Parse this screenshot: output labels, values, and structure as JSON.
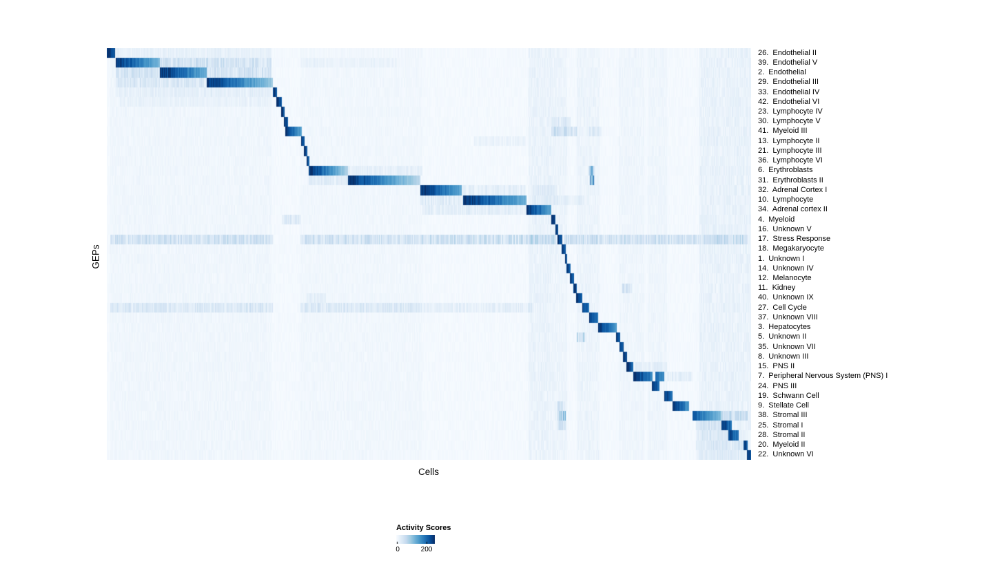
{
  "chart_data": {
    "type": "heatmap",
    "title": "",
    "xlabel": "Cells",
    "ylabel": "GEPs",
    "colorbar": {
      "title": "Activity Scores",
      "tick_labels": [
        "0",
        "200"
      ]
    },
    "colormap": [
      "#f7fbff",
      "#deebf7",
      "#c6dbef",
      "#9ecae1",
      "#6baed6",
      "#4292c6",
      "#2171b5",
      "#08519c",
      "#08306b"
    ],
    "layout_hints": {
      "rows_are_geps": true,
      "columns_are_cells": true,
      "diagonal_block_structure": true,
      "row_labels_position": "right",
      "legend_position": "bottom"
    },
    "rows": [
      {
        "label": "26.  Endothelial II",
        "blocks": [
          [
            0.0,
            0.012,
            1.0,
            0.9
          ]
        ],
        "haze": [
          [
            0.012,
            0.255,
            0.04
          ]
        ]
      },
      {
        "label": "39.  Endothelial V",
        "blocks": [
          [
            0.013,
            0.082,
            1.0,
            0.45
          ]
        ],
        "haze": [
          [
            0.082,
            0.255,
            0.13
          ],
          [
            0.3,
            0.45,
            0.03
          ]
        ]
      },
      {
        "label": "2.  Endothelial",
        "blocks": [
          [
            0.082,
            0.155,
            1.0,
            0.5
          ]
        ],
        "haze": [
          [
            0.013,
            0.082,
            0.12
          ],
          [
            0.155,
            0.255,
            0.12
          ]
        ]
      },
      {
        "label": "29.  Endothelial III",
        "blocks": [
          [
            0.155,
            0.257,
            1.0,
            0.38
          ]
        ],
        "haze": [
          [
            0.013,
            0.155,
            0.1
          ]
        ]
      },
      {
        "label": "33.  Endothelial IV",
        "blocks": [
          [
            0.257,
            0.264,
            1.0,
            0.88
          ]
        ],
        "haze": [
          [
            0.013,
            0.255,
            0.05
          ]
        ]
      },
      {
        "label": "42.  Endothelial VI",
        "blocks": [
          [
            0.263,
            0.271,
            1.0,
            0.85
          ]
        ],
        "haze": [
          [
            0.02,
            0.255,
            0.03
          ]
        ]
      },
      {
        "label": "23.  Lymphocyte IV",
        "blocks": [
          [
            0.27,
            0.276,
            1.0,
            0.85
          ]
        ],
        "haze": []
      },
      {
        "label": "30.  Lymphocyte V",
        "blocks": [
          [
            0.275,
            0.281,
            1.0,
            0.85
          ]
        ],
        "haze": [
          [
            0.69,
            0.72,
            0.07
          ]
        ]
      },
      {
        "label": "41.  Myeloid III",
        "blocks": [
          [
            0.277,
            0.302,
            1.0,
            0.55
          ]
        ],
        "haze": [
          [
            0.69,
            0.73,
            0.14
          ],
          [
            0.748,
            0.768,
            0.07
          ]
        ]
      },
      {
        "label": "13.  Lymphocyte II",
        "blocks": [
          [
            0.301,
            0.307,
            1.0,
            0.85
          ]
        ],
        "haze": [
          [
            0.57,
            0.65,
            0.04
          ]
        ]
      },
      {
        "label": "21.  Lymphocyte III",
        "blocks": [
          [
            0.306,
            0.311,
            1.0,
            0.85
          ]
        ],
        "haze": []
      },
      {
        "label": "36.  Lymphocyte VI",
        "blocks": [
          [
            0.31,
            0.314,
            1.0,
            0.85
          ]
        ],
        "haze": []
      },
      {
        "label": "6.  Erythroblasts",
        "blocks": [
          [
            0.313,
            0.374,
            1.0,
            0.32
          ]
        ],
        "haze": [
          [
            0.374,
            0.49,
            0.05
          ],
          [
            0.748,
            0.757,
            0.28
          ]
        ]
      },
      {
        "label": "31.  Erythroblasts II",
        "blocks": [
          [
            0.374,
            0.487,
            1.0,
            0.28
          ]
        ],
        "haze": [
          [
            0.313,
            0.374,
            0.07
          ],
          [
            0.75,
            0.757,
            0.45
          ]
        ]
      },
      {
        "label": "32.  Adrenal Cortex I",
        "blocks": [
          [
            0.487,
            0.551,
            1.0,
            0.52
          ]
        ],
        "haze": [
          [
            0.551,
            0.65,
            0.07
          ],
          [
            0.66,
            0.7,
            0.05
          ]
        ]
      },
      {
        "label": "10.  Lymphocyte",
        "blocks": [
          [
            0.553,
            0.652,
            1.0,
            0.5
          ]
        ],
        "haze": [
          [
            0.487,
            0.553,
            0.09
          ],
          [
            0.66,
            0.74,
            0.05
          ]
        ]
      },
      {
        "label": "34.  Adrenal cortex II",
        "blocks": [
          [
            0.652,
            0.69,
            1.0,
            0.55
          ]
        ],
        "haze": [
          [
            0.49,
            0.652,
            0.07
          ]
        ]
      },
      {
        "label": "4.  Myeloid",
        "blocks": [
          [
            0.69,
            0.697,
            1.0,
            0.85
          ]
        ],
        "haze": [
          [
            0.273,
            0.3,
            0.11
          ]
        ]
      },
      {
        "label": "16.  Unknown V",
        "blocks": [
          [
            0.696,
            0.701,
            1.0,
            0.85
          ]
        ],
        "haze": []
      },
      {
        "label": "17.  Stress Response",
        "blocks": [
          [
            0.7,
            0.707,
            1.0,
            0.85
          ]
        ],
        "haze": [
          [
            0.005,
            0.258,
            0.14
          ],
          [
            0.3,
            0.49,
            0.14
          ],
          [
            0.49,
            0.698,
            0.17
          ],
          [
            0.71,
            0.995,
            0.14
          ]
        ]
      },
      {
        "label": "18.  Megakaryocyte",
        "blocks": [
          [
            0.706,
            0.712,
            1.0,
            0.85
          ]
        ],
        "haze": []
      },
      {
        "label": "1.  Unknown I",
        "blocks": [
          [
            0.711,
            0.715,
            1.0,
            0.85
          ]
        ],
        "haze": []
      },
      {
        "label": "14.  Unknown IV",
        "blocks": [
          [
            0.714,
            0.72,
            1.0,
            0.85
          ]
        ],
        "haze": []
      },
      {
        "label": "12.  Melanocyte",
        "blocks": [
          [
            0.719,
            0.725,
            1.0,
            0.85
          ]
        ],
        "haze": []
      },
      {
        "label": "11.  Kidney",
        "blocks": [
          [
            0.724,
            0.73,
            1.0,
            0.85
          ]
        ],
        "haze": [
          [
            0.8,
            0.815,
            0.13
          ]
        ]
      },
      {
        "label": "40.  Unknown IX",
        "blocks": [
          [
            0.729,
            0.738,
            1.0,
            0.8
          ]
        ],
        "haze": [
          [
            0.31,
            0.34,
            0.05
          ]
        ]
      },
      {
        "label": "27.  Cell Cycle",
        "blocks": [
          [
            0.738,
            0.749,
            1.0,
            0.7
          ]
        ],
        "haze": [
          [
            0.005,
            0.258,
            0.1
          ],
          [
            0.3,
            0.49,
            0.1
          ],
          [
            0.49,
            0.66,
            0.07
          ]
        ]
      },
      {
        "label": "37.  Unknown VIII",
        "blocks": [
          [
            0.749,
            0.763,
            1.0,
            0.7
          ]
        ],
        "haze": []
      },
      {
        "label": "3.  Hepatocytes",
        "blocks": [
          [
            0.763,
            0.792,
            1.0,
            0.58
          ]
        ],
        "haze": []
      },
      {
        "label": "5.  Unknown II",
        "blocks": [
          [
            0.791,
            0.797,
            1.0,
            0.85
          ]
        ],
        "haze": [
          [
            0.73,
            0.742,
            0.18
          ]
        ]
      },
      {
        "label": "35.  Unknown VII",
        "blocks": [
          [
            0.796,
            0.802,
            1.0,
            0.85
          ]
        ],
        "haze": []
      },
      {
        "label": "8.  Unknown III",
        "blocks": [
          [
            0.801,
            0.808,
            1.0,
            0.85
          ]
        ],
        "haze": []
      },
      {
        "label": "15.  PNS II",
        "blocks": [
          [
            0.807,
            0.817,
            1.0,
            0.8
          ]
        ],
        "haze": [
          [
            0.82,
            0.87,
            0.05
          ]
        ]
      },
      {
        "label": "7.  Peripheral Nervous System (PNS) I",
        "blocks": [
          [
            0.817,
            0.847,
            1.0,
            0.68
          ],
          [
            0.852,
            0.866,
            0.8,
            0.6
          ]
        ],
        "haze": [
          [
            0.87,
            0.91,
            0.07
          ]
        ]
      },
      {
        "label": "24.  PNS III",
        "blocks": [
          [
            0.846,
            0.858,
            1.0,
            0.75
          ]
        ],
        "haze": []
      },
      {
        "label": "19.  Schwann Cell",
        "blocks": [
          [
            0.866,
            0.879,
            1.0,
            0.75
          ]
        ],
        "haze": []
      },
      {
        "label": "9.  Stellate Cell",
        "blocks": [
          [
            0.879,
            0.904,
            1.0,
            0.62
          ]
        ],
        "haze": [
          [
            0.7,
            0.712,
            0.13
          ]
        ]
      },
      {
        "label": "38.  Stromal III",
        "blocks": [
          [
            0.909,
            0.955,
            0.85,
            0.42
          ]
        ],
        "haze": [
          [
            0.7,
            0.712,
            0.28
          ],
          [
            0.955,
            0.995,
            0.13
          ]
        ]
      },
      {
        "label": "25.  Stromal I",
        "blocks": [
          [
            0.955,
            0.971,
            1.0,
            0.7
          ]
        ],
        "haze": [
          [
            0.7,
            0.712,
            0.13
          ],
          [
            0.915,
            0.955,
            0.09
          ]
        ]
      },
      {
        "label": "28.  Stromal II",
        "blocks": [
          [
            0.965,
            0.981,
            1.0,
            0.7
          ]
        ],
        "haze": [
          [
            0.915,
            0.965,
            0.07
          ]
        ]
      },
      {
        "label": "20.  Myeloid II",
        "blocks": [
          [
            0.989,
            0.995,
            1.0,
            0.85
          ]
        ],
        "haze": [
          [
            0.915,
            0.988,
            0.07
          ]
        ]
      },
      {
        "label": "22.  Unknown VI",
        "blocks": [
          [
            0.994,
            1.0,
            1.0,
            0.85
          ]
        ],
        "haze": [
          [
            0.915,
            0.988,
            0.05
          ]
        ]
      }
    ],
    "column_noise_bands": [
      [
        0.005,
        0.255,
        0.02
      ],
      [
        0.3,
        0.49,
        0.015
      ],
      [
        0.655,
        0.69,
        0.045
      ],
      [
        0.69,
        0.715,
        0.035
      ],
      [
        0.73,
        0.765,
        0.035
      ],
      [
        0.795,
        0.835,
        0.025
      ],
      [
        0.84,
        0.87,
        0.025
      ],
      [
        0.92,
        1.0,
        0.05
      ]
    ],
    "noise": {
      "seed": 7,
      "base": 0.03
    }
  }
}
